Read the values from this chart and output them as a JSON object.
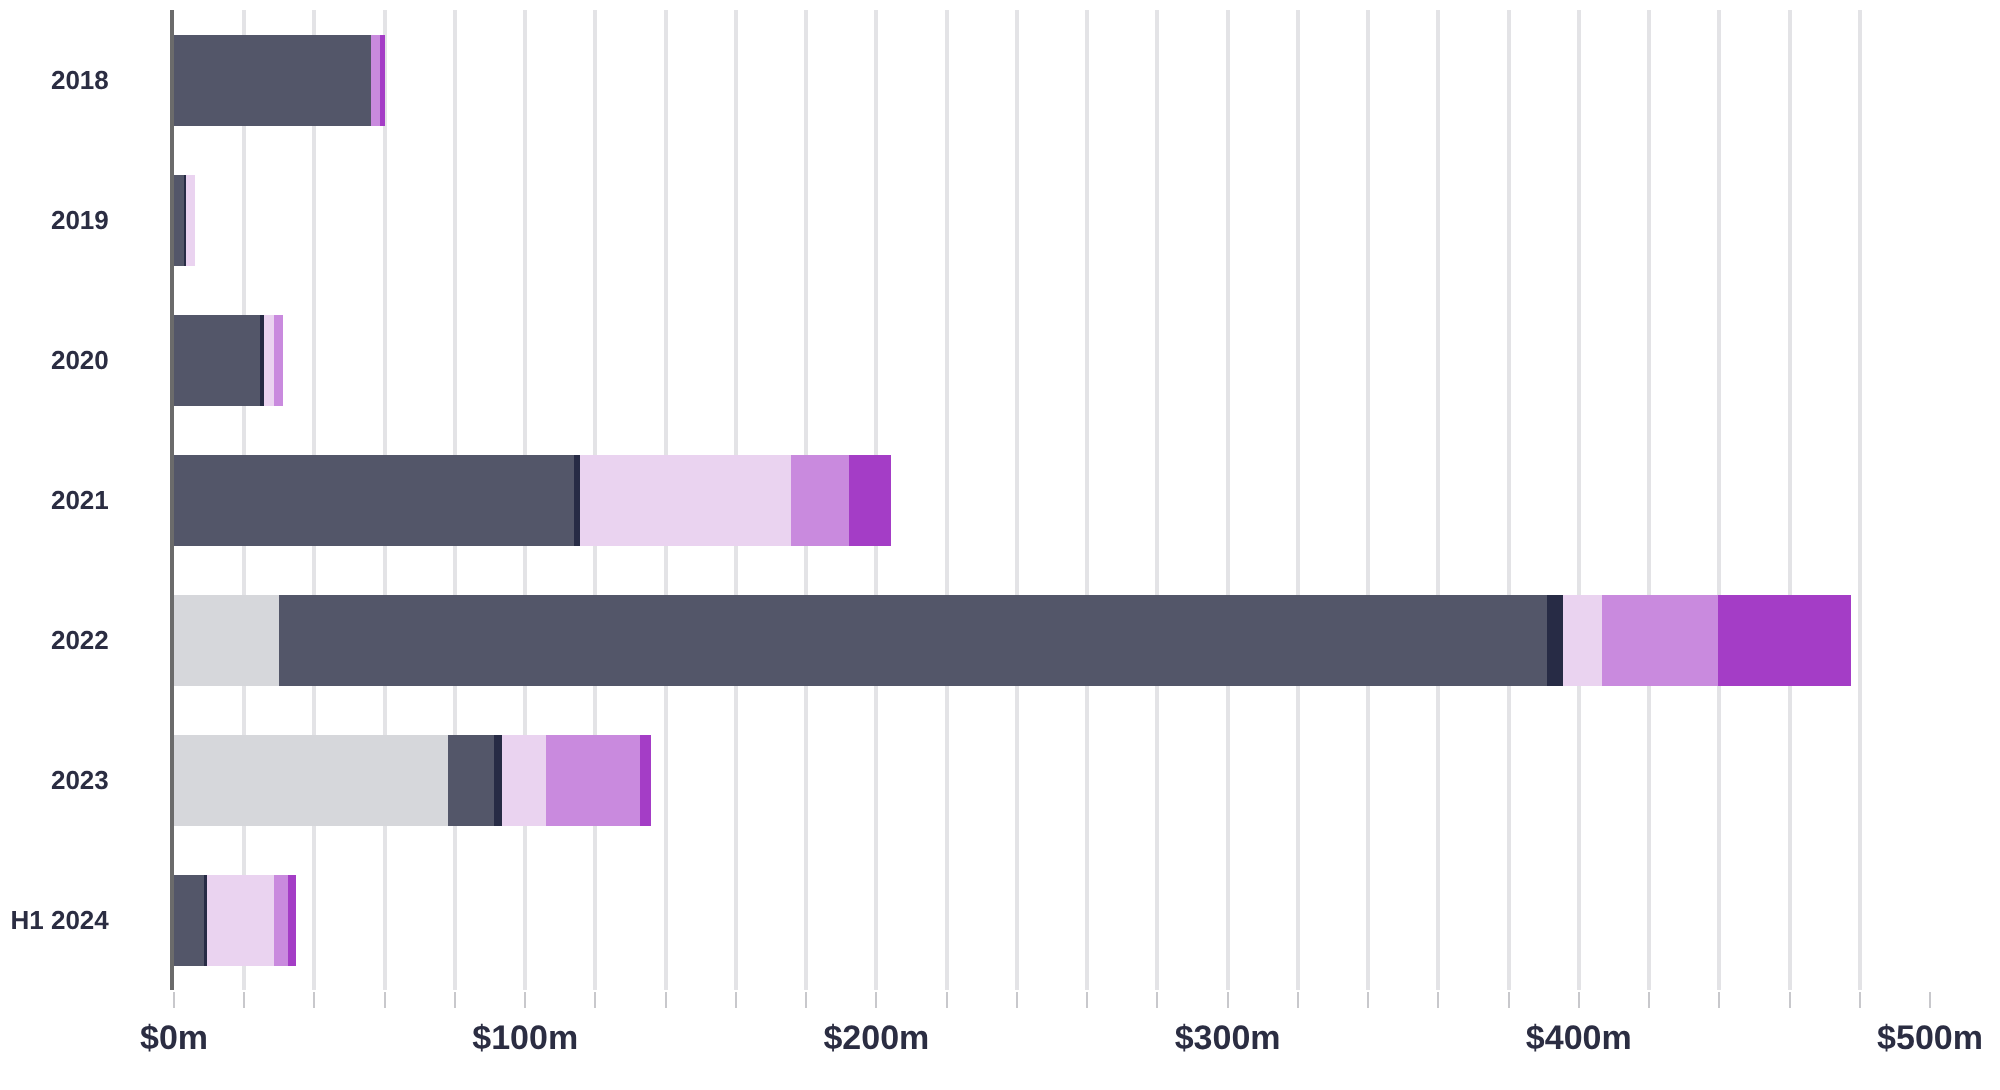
{
  "chart_data": {
    "type": "bar",
    "orientation": "horizontal",
    "stacked": true,
    "categories": [
      "2018",
      "2019",
      "2020",
      "2021",
      "2022",
      "2023",
      "H1 2024"
    ],
    "series": [
      {
        "color": "#d6d7db",
        "values": [
          0,
          0,
          0,
          0,
          30,
          78,
          0
        ]
      },
      {
        "color": "#535669",
        "values": [
          56,
          3,
          24.6,
          114,
          361,
          13,
          9
        ]
      },
      {
        "color": "#272b45",
        "values": [
          0,
          0.4,
          1,
          1.7,
          4.5,
          2.3,
          0.5
        ]
      },
      {
        "color": "#ead3f0",
        "values": [
          0,
          2.6,
          2.8,
          60,
          11,
          12.5,
          19
        ]
      },
      {
        "color": "#c98ade",
        "values": [
          3,
          0,
          2.7,
          16.5,
          33,
          27,
          4
        ]
      },
      {
        "color": "#a43dc6",
        "values": [
          1,
          0,
          0,
          12,
          38,
          3,
          2.3
        ]
      }
    ],
    "xlim": [
      0,
      500
    ],
    "xticks": [
      {
        "value": 0,
        "label": "$0m"
      },
      {
        "value": 20,
        "label": null
      },
      {
        "value": 40,
        "label": null
      },
      {
        "value": 60,
        "label": null
      },
      {
        "value": 80,
        "label": null
      },
      {
        "value": 100,
        "label": "$100m"
      },
      {
        "value": 120,
        "label": null
      },
      {
        "value": 140,
        "label": null
      },
      {
        "value": 160,
        "label": null
      },
      {
        "value": 180,
        "label": null
      },
      {
        "value": 200,
        "label": "$200m"
      },
      {
        "value": 220,
        "label": null
      },
      {
        "value": 240,
        "label": null
      },
      {
        "value": 260,
        "label": null
      },
      {
        "value": 280,
        "label": null
      },
      {
        "value": 300,
        "label": "$300m"
      },
      {
        "value": 320,
        "label": null
      },
      {
        "value": 340,
        "label": null
      },
      {
        "value": 360,
        "label": null
      },
      {
        "value": 380,
        "label": null
      },
      {
        "value": 400,
        "label": "$400m"
      },
      {
        "value": 420,
        "label": null
      },
      {
        "value": 440,
        "label": null
      },
      {
        "value": 460,
        "label": null
      },
      {
        "value": 480,
        "label": null
      },
      {
        "value": 500,
        "label": "$500m"
      }
    ],
    "grid": "x"
  }
}
